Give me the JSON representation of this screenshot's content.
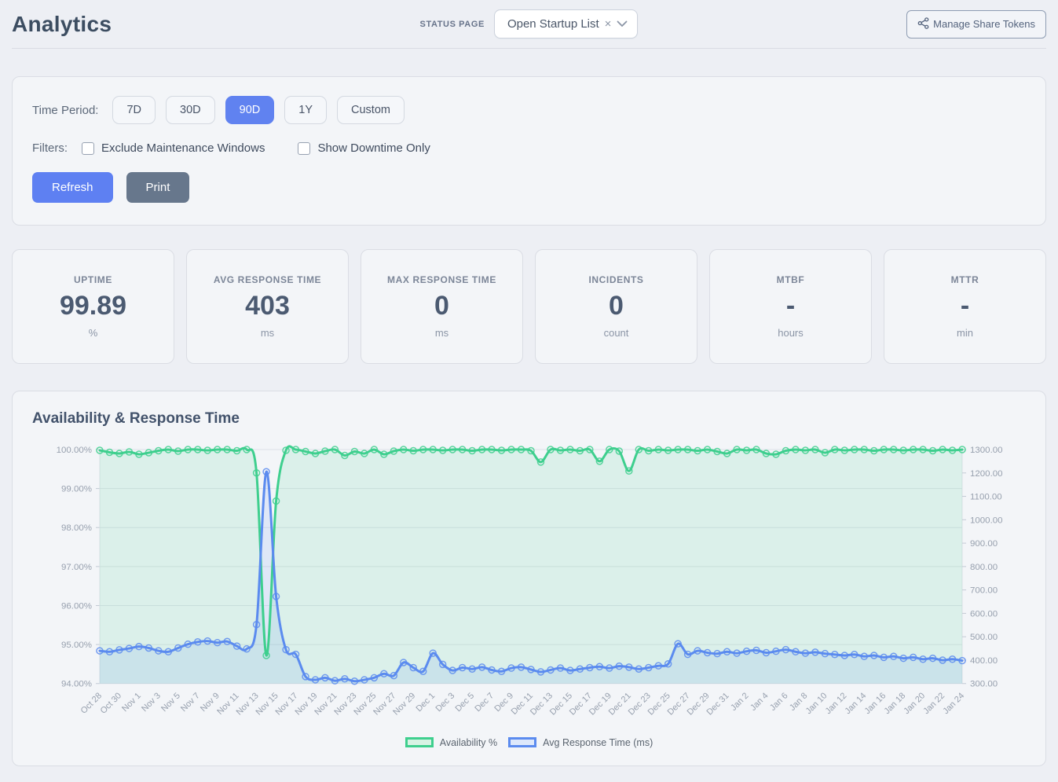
{
  "header": {
    "title": "Analytics",
    "status_page_label": "STATUS PAGE",
    "status_page_value": "Open Startup List",
    "clear_icon": "×",
    "manage_tokens_label": "Manage Share Tokens"
  },
  "filters_panel": {
    "time_period_label": "Time Period:",
    "periods": [
      "7D",
      "30D",
      "90D",
      "1Y",
      "Custom"
    ],
    "active_period": "90D",
    "filters_label": "Filters:",
    "checkboxes": [
      {
        "label": "Exclude Maintenance Windows",
        "checked": false
      },
      {
        "label": "Show Downtime Only",
        "checked": false
      }
    ],
    "refresh_label": "Refresh",
    "print_label": "Print"
  },
  "stats": [
    {
      "label": "UPTIME",
      "value": "99.89",
      "unit": "%"
    },
    {
      "label": "AVG RESPONSE TIME",
      "value": "403",
      "unit": "ms"
    },
    {
      "label": "MAX RESPONSE TIME",
      "value": "0",
      "unit": "ms"
    },
    {
      "label": "INCIDENTS",
      "value": "0",
      "unit": "count"
    },
    {
      "label": "MTBF",
      "value": "-",
      "unit": "hours"
    },
    {
      "label": "MTTR",
      "value": "-",
      "unit": "min"
    }
  ],
  "colors": {
    "accent_blue": "#5e80f2",
    "print_gray": "#67778c",
    "green_line": "#3ecf8e",
    "green_tint": "#d8f3e4",
    "blue_line": "#5b8bef",
    "blue_tint": "#dde8fb",
    "grid": "#dde1e7",
    "axis_text": "#97a0ae"
  },
  "chart_data": {
    "type": "line",
    "title": "Availability & Response Time",
    "label_every": 2,
    "x": [
      "Oct 28",
      "Oct 29",
      "Oct 30",
      "Oct 31",
      "Nov 1",
      "Nov 2",
      "Nov 3",
      "Nov 4",
      "Nov 5",
      "Nov 6",
      "Nov 7",
      "Nov 8",
      "Nov 9",
      "Nov 10",
      "Nov 11",
      "Nov 12",
      "Nov 13",
      "Nov 14",
      "Nov 15",
      "Nov 16",
      "Nov 17",
      "Nov 18",
      "Nov 19",
      "Nov 20",
      "Nov 21",
      "Nov 22",
      "Nov 23",
      "Nov 24",
      "Nov 25",
      "Nov 26",
      "Nov 27",
      "Nov 28",
      "Nov 29",
      "Nov 30",
      "Dec 1",
      "Dec 2",
      "Dec 3",
      "Dec 4",
      "Dec 5",
      "Dec 6",
      "Dec 7",
      "Dec 8",
      "Dec 9",
      "Dec 10",
      "Dec 11",
      "Dec 12",
      "Dec 13",
      "Dec 14",
      "Dec 15",
      "Dec 16",
      "Dec 17",
      "Dec 18",
      "Dec 19",
      "Dec 20",
      "Dec 21",
      "Dec 22",
      "Dec 23",
      "Dec 24",
      "Dec 25",
      "Dec 26",
      "Dec 27",
      "Dec 28",
      "Dec 29",
      "Dec 30",
      "Dec 31",
      "Jan 1",
      "Jan 2",
      "Jan 3",
      "Jan 4",
      "Jan 5",
      "Jan 6",
      "Jan 7",
      "Jan 8",
      "Jan 9",
      "Jan 10",
      "Jan 11",
      "Jan 12",
      "Jan 13",
      "Jan 14",
      "Jan 15",
      "Jan 16",
      "Jan 17",
      "Jan 18",
      "Jan 19",
      "Jan 20",
      "Jan 21",
      "Jan 22",
      "Jan 23",
      "Jan 24"
    ],
    "left_axis": {
      "min": 94,
      "max": 100,
      "step": 1,
      "suffix": "%"
    },
    "right_axis": {
      "min": 300,
      "max": 1300,
      "step": 100,
      "suffix": ""
    },
    "series": [
      {
        "name": "Availability %",
        "axis": "left",
        "values": [
          99.98,
          99.93,
          99.9,
          99.94,
          99.88,
          99.92,
          99.97,
          100,
          99.96,
          100,
          100,
          99.98,
          100,
          100,
          99.97,
          100,
          99.4,
          94.72,
          98.68,
          99.98,
          100,
          99.95,
          99.9,
          99.96,
          100,
          99.85,
          99.95,
          99.9,
          100,
          99.88,
          99.96,
          100,
          99.97,
          100,
          100,
          99.98,
          100,
          100,
          99.97,
          100,
          100,
          99.98,
          100,
          100,
          99.97,
          99.68,
          100,
          99.98,
          100,
          99.97,
          100,
          99.7,
          100,
          99.96,
          99.45,
          100,
          99.97,
          100,
          99.98,
          100,
          100,
          99.97,
          100,
          99.95,
          99.9,
          100,
          99.98,
          100,
          99.9,
          99.88,
          99.97,
          100,
          99.98,
          100,
          99.92,
          100,
          99.98,
          100,
          100,
          99.97,
          100,
          100,
          99.98,
          100,
          100,
          99.97,
          100,
          99.98,
          100
        ]
      },
      {
        "name": "Avg Response Time (ms)",
        "axis": "right",
        "values": [
          440,
          436,
          444,
          450,
          458,
          452,
          440,
          436,
          452,
          468,
          478,
          482,
          475,
          480,
          460,
          448,
          552,
          1205,
          672,
          445,
          425,
          330,
          316,
          325,
          312,
          320,
          310,
          316,
          325,
          342,
          334,
          390,
          368,
          352,
          430,
          382,
          356,
          368,
          362,
          370,
          358,
          352,
          366,
          370,
          360,
          350,
          358,
          366,
          356,
          362,
          368,
          372,
          366,
          374,
          370,
          362,
          368,
          376,
          384,
          470,
          425,
          440,
          432,
          428,
          436,
          430,
          438,
          442,
          432,
          438,
          445,
          436,
          430,
          434,
          428,
          424,
          420,
          424,
          416,
          420,
          412,
          416,
          408,
          412,
          404,
          408,
          400,
          404,
          398
        ]
      }
    ]
  }
}
